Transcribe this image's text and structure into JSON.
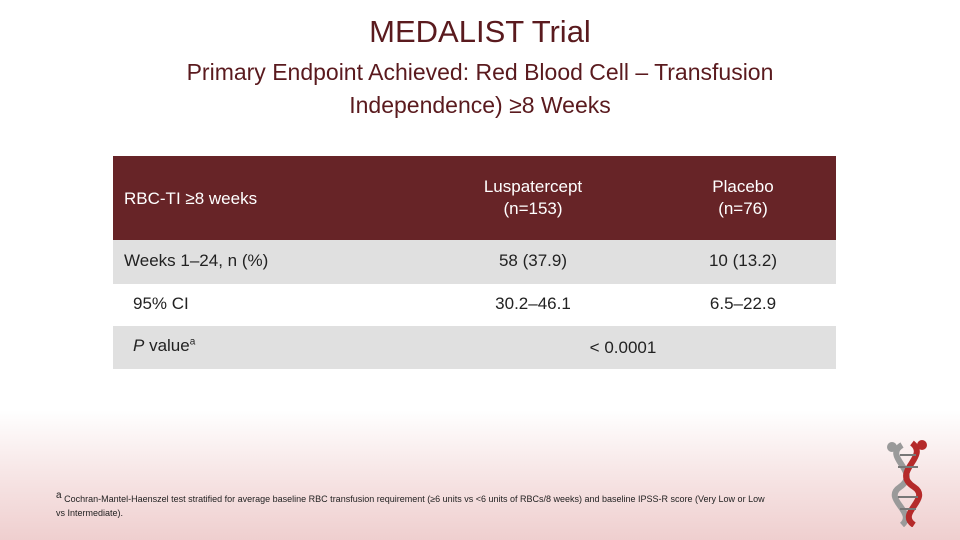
{
  "title": "MEDALIST Trial",
  "subtitle": "Primary Endpoint Achieved: Red Blood Cell – Transfusion Independence) ≥8 Weeks",
  "table": {
    "header": {
      "label": "RBC-TI ≥8 weeks",
      "luspatercept": "Luspatercept",
      "luspatercept_n": "(n=153)",
      "placebo": "Placebo",
      "placebo_n": "(n=76)"
    },
    "row_weeks": {
      "label": "Weeks 1–24, n (%)",
      "luspatercept": "58 (37.9)",
      "placebo": "10 (13.2)"
    },
    "row_ci": {
      "label": "95% CI",
      "luspatercept": "30.2–46.1",
      "placebo": "6.5–22.9"
    },
    "row_p": {
      "label_italic": "P",
      "label_rest": " value",
      "label_sup": "a",
      "value": "< 0.0001"
    }
  },
  "footnote": {
    "sup": "a",
    "text": " Cochran-Mantel-Haenszel test stratified for average baseline RBC transfusion requirement (≥6 units vs <6 units of RBCs/8 weeks) and baseline IPSS-R score (Very Low or Low vs Intermediate)."
  },
  "colors": {
    "header_bg": "#672427",
    "stripe": "#e0e0e0",
    "title": "#5a1a1e"
  },
  "logo_icon": "dna-helix-figure-icon"
}
